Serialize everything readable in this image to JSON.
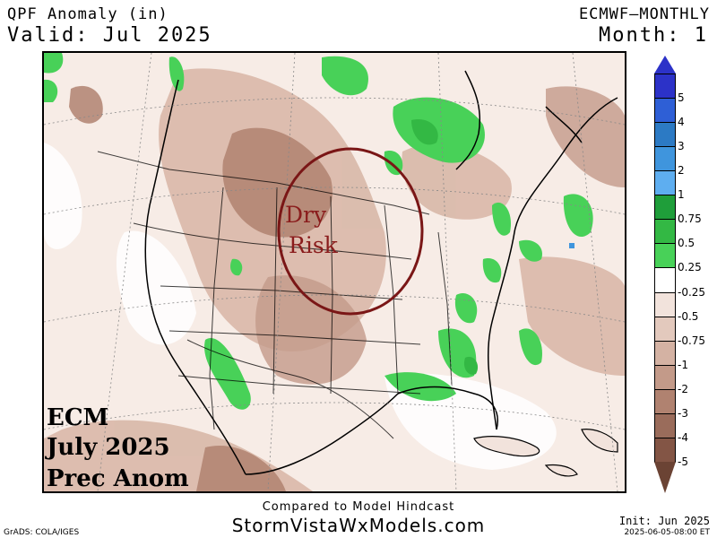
{
  "header": {
    "title": "QPF Anomaly (in)",
    "valid": "Valid: Jul 2025",
    "model": "ECMWF—MONTHLY",
    "month": "Month: 1"
  },
  "map": {
    "overlay_lines": [
      "ECM",
      "July 2025",
      "Prec Anom"
    ],
    "annotation": {
      "line1": "Dry",
      "line2": "Risk",
      "color": "#8a1c1c"
    }
  },
  "legend": {
    "items": [
      {
        "label": "5",
        "color": "#2c32c8"
      },
      {
        "label": "4",
        "color": "#2e5fd6"
      },
      {
        "label": "3",
        "color": "#2c7ac4"
      },
      {
        "label": "2",
        "color": "#3f95dd"
      },
      {
        "label": "1",
        "color": "#5eaef0"
      },
      {
        "label": "0.75",
        "color": "#1f9e3a"
      },
      {
        "label": "0.5",
        "color": "#33b844"
      },
      {
        "label": "0.25",
        "color": "#48d158"
      },
      {
        "label": "-0.25",
        "color": "#ffffff"
      },
      {
        "label": "-0.5",
        "color": "#f2e3dc"
      },
      {
        "label": "-0.75",
        "color": "#e3c9bd"
      },
      {
        "label": "-1",
        "color": "#d4b2a3"
      },
      {
        "label": "-2",
        "color": "#c39a89"
      },
      {
        "label": "-3",
        "color": "#b08270"
      },
      {
        "label": "-4",
        "color": "#9a6c5b"
      },
      {
        "label": "-5",
        "color": "#835545"
      },
      {
        "label": "",
        "color": "#6b4334"
      }
    ]
  },
  "footer": {
    "compare": "Compared to Model Hindcast",
    "site": "StormVistaWxModels.com",
    "grads": "GrADS: COLA/IGES",
    "init": "Init: Jun 2025",
    "stamp": "2025-06-05-08:00 ET"
  }
}
